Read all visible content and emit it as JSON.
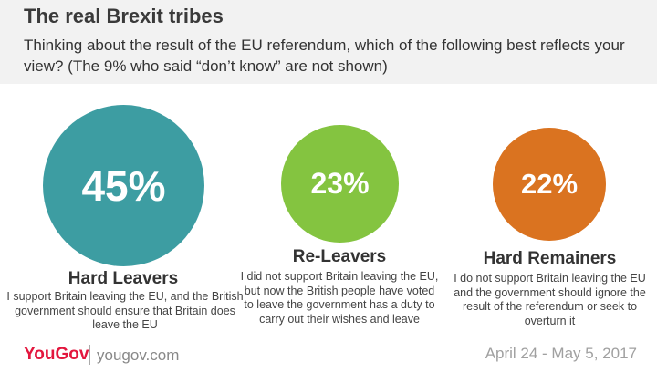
{
  "header": {
    "title": "The real Brexit tribes",
    "subtitle": "Thinking about the result of the EU referendum, which of the following best reflects your view? (The 9% who said “don’t know” are not shown)"
  },
  "chart_data": {
    "type": "bubble",
    "title": "The real Brexit tribes",
    "unit": "%",
    "categories": [
      "Hard Leavers",
      "Re-Leavers",
      "Hard Remainers"
    ],
    "values": [
      45,
      23,
      22
    ],
    "labels": [
      "45%",
      "23%",
      "22%"
    ],
    "colors": [
      "#3d9da2",
      "#84c440",
      "#da7320"
    ],
    "descriptions": [
      "I support Britain leaving the EU, and the British government should ensure that Britain does leave the EU",
      "I did not support Britain leaving the EU, but now the British people have voted to leave the government has a duty to carry out their wishes and leave",
      "I do not support Britain leaving the EU and the government should ignore the result of the referendum or seek to overturn it"
    ]
  },
  "footer": {
    "logo": "YouGov",
    "url": "yougov.com",
    "date": "April 24 - May 5, 2017"
  }
}
